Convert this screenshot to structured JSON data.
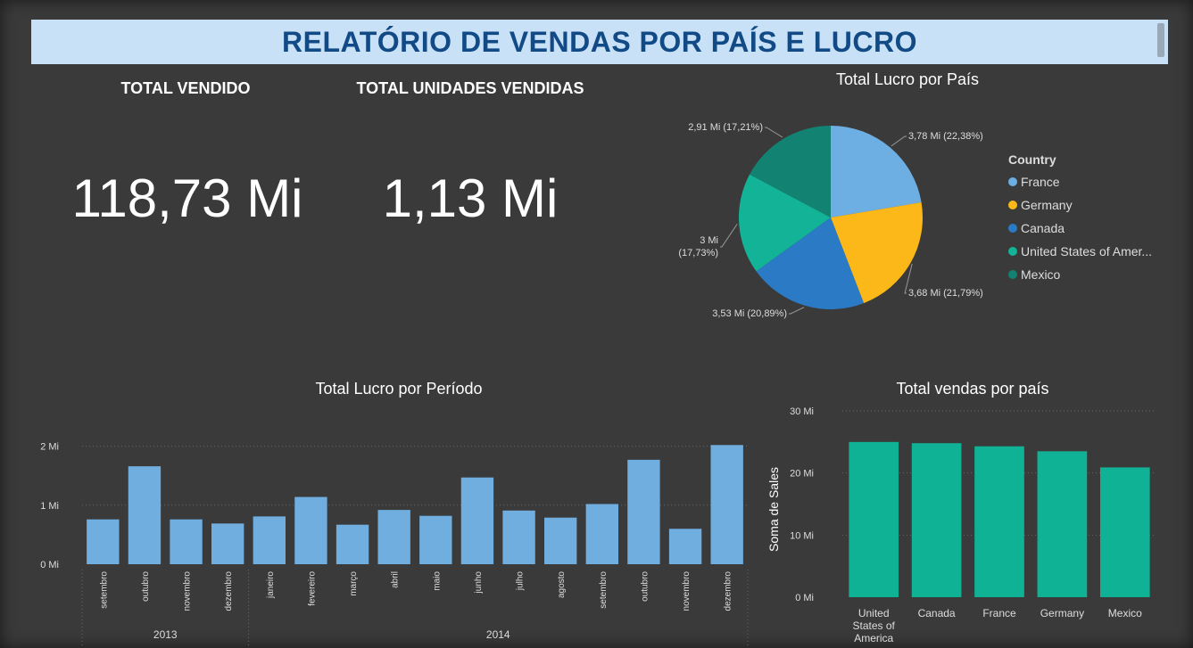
{
  "header": {
    "title": "RELATÓRIO DE VENDAS POR PAÍS E LUCRO"
  },
  "kpis": {
    "total_vendido": {
      "label": "TOTAL VENDIDO",
      "value": "118,73 Mi"
    },
    "total_unidades": {
      "label": "TOTAL UNIDADES VENDIDAS",
      "value": "1,13 Mi"
    }
  },
  "colors": {
    "pie": [
      "#6dafe3",
      "#fbb818",
      "#2b7ac5",
      "#12b396",
      "#128272"
    ],
    "bars_period": "#70aee0",
    "bars_country": "#10b295",
    "background": "#3a3a3a",
    "title_bg": "#c9e1f7",
    "title_text": "#124a86"
  },
  "chart_data": [
    {
      "type": "pie",
      "title": "Total Lucro por País",
      "legend_title": "Country",
      "legend_placement": "right",
      "slices": [
        {
          "name": "France",
          "legend": "France",
          "value": 3.78,
          "label": "3,78 Mi (22,38%)"
        },
        {
          "name": "Germany",
          "legend": "Germany",
          "value": 3.68,
          "label": "3,68 Mi (21,79%)"
        },
        {
          "name": "Canada",
          "legend": "Canada",
          "value": 3.53,
          "label": "3,53 Mi (20,89%)"
        },
        {
          "name": "United States of America",
          "legend": "United States of Amer...",
          "value": 3.0,
          "label": "3 Mi (17,73%)",
          "label_lines": [
            "3 Mi",
            "(17,73%)"
          ]
        },
        {
          "name": "Mexico",
          "legend": "Mexico",
          "value": 2.91,
          "label": "2,91 Mi (17,21%)"
        }
      ]
    },
    {
      "type": "bar",
      "title": "Total Lucro por Período",
      "categories": [
        "setembro",
        "outubro",
        "novembro",
        "dezembro",
        "janeiro",
        "fevereiro",
        "março",
        "abril",
        "maio",
        "junho",
        "julho",
        "agosto",
        "setembro",
        "outubro",
        "novembro",
        "dezembro"
      ],
      "groups": [
        {
          "label": "2013",
          "count": 4
        },
        {
          "label": "2014",
          "count": 12
        }
      ],
      "values": [
        0.76,
        1.66,
        0.76,
        0.69,
        0.81,
        1.14,
        0.67,
        0.92,
        0.82,
        1.47,
        0.91,
        0.79,
        1.02,
        1.77,
        0.6,
        2.02
      ],
      "ylim": [
        0,
        2.1
      ],
      "yticks": [
        {
          "v": 0,
          "label": "0 Mi"
        },
        {
          "v": 1,
          "label": "1 Mi"
        },
        {
          "v": 2,
          "label": "2 Mi"
        }
      ],
      "grid": true
    },
    {
      "type": "bar",
      "title": "Total vendas por país",
      "ylabel": "Soma de Sales",
      "categories": [
        [
          "United",
          "States of",
          "America"
        ],
        [
          "Canada"
        ],
        [
          "France"
        ],
        [
          "Germany"
        ],
        [
          "Mexico"
        ]
      ],
      "values": [
        25.0,
        24.8,
        24.3,
        23.5,
        20.9
      ],
      "ylim": [
        0,
        30
      ],
      "yticks": [
        {
          "v": 0,
          "label": "0 Mi"
        },
        {
          "v": 10,
          "label": "10 Mi"
        },
        {
          "v": 20,
          "label": "20 Mi"
        },
        {
          "v": 30,
          "label": "30 Mi"
        }
      ],
      "grid": true
    }
  ]
}
